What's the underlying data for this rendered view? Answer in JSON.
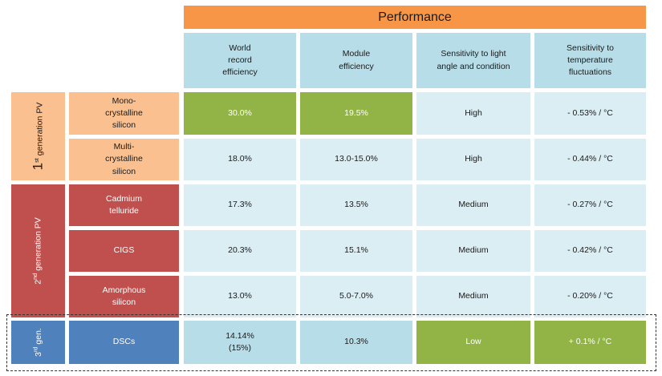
{
  "header": {
    "performance": "Performance",
    "columns": [
      "World\nrecord\nefficiency",
      "Module\nefficiency",
      "Sensitivity to light\nangle and condition",
      "Sensitivity to\ntemperature\nfluctuations"
    ]
  },
  "generations": {
    "first": {
      "num": "1",
      "sup": "st",
      "label": " generation PV"
    },
    "second": {
      "num": "2",
      "sup": "nd",
      "label": " generation PV"
    },
    "third": {
      "num": "3",
      "sup": "rd",
      "label": " gen."
    }
  },
  "rows": [
    {
      "tech": "Mono-\ncrystalline\nsilicon",
      "world": "30.0%",
      "module": "19.5%",
      "light": "High",
      "temp": "- 0.53% / °C"
    },
    {
      "tech": "Multi-\ncrystalline\nsilicon",
      "world": "18.0%",
      "module": "13.0-15.0%",
      "light": "High",
      "temp": "- 0.44% / °C"
    },
    {
      "tech": "Cadmium\ntelluride",
      "world": "17.3%",
      "module": "13.5%",
      "light": "Medium",
      "temp": "- 0.27% / °C"
    },
    {
      "tech": "CIGS",
      "world": "20.3%",
      "module": "15.1%",
      "light": "Medium",
      "temp": "- 0.42% / °C"
    },
    {
      "tech": "Amorphous\nsilicon",
      "world": "13.0%",
      "module": "5.0-7.0%",
      "light": "Medium",
      "temp": "- 0.20% / °C"
    },
    {
      "tech": "DSCs",
      "world": "14.14%\n(15%)",
      "module": "10.3%",
      "light": "Low",
      "temp": "+ 0.1% / °C"
    }
  ],
  "colors": {
    "performance": "#f79646",
    "header": "#b7dde8",
    "light_cell": "#dbeef3",
    "highlight_green": "#92b446",
    "gen1": "#fac090",
    "gen2": "#c0504d",
    "gen3": "#4f81bd"
  }
}
